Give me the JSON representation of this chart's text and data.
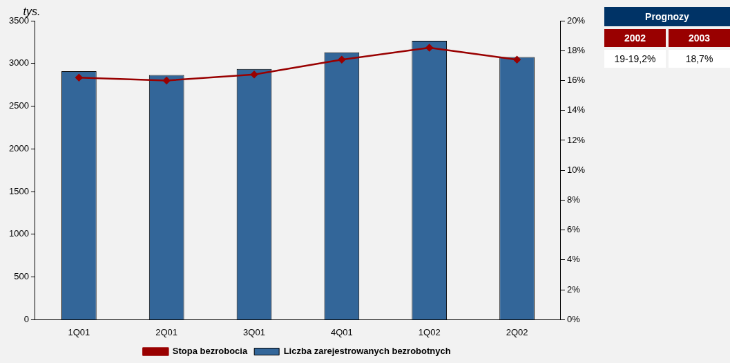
{
  "chart_data": {
    "type": "bar",
    "ylabel": "tys.",
    "categories": [
      "1Q01",
      "2Q01",
      "3Q01",
      "4Q01",
      "1Q02",
      "2Q02"
    ],
    "series": [
      {
        "name": "Liczba zarejestrowanych bezrobotnych",
        "color": "#336699",
        "values": [
          2910,
          2865,
          2935,
          3130,
          3265,
          3075
        ]
      },
      {
        "name": "Stopa bezrobocia",
        "type": "line",
        "axis": "y2",
        "color": "#990000",
        "values": [
          16.2,
          16.0,
          16.4,
          17.4,
          18.2,
          17.4
        ]
      }
    ],
    "ylim": [
      0,
      3500
    ],
    "yticks": [
      0,
      500,
      1000,
      1500,
      2000,
      2500,
      3000,
      3500
    ],
    "y2lim": [
      0,
      20
    ],
    "y2ticks": [
      {
        "value": 0,
        "label": "0%"
      },
      {
        "value": 2,
        "label": "2%"
      },
      {
        "value": 4,
        "label": "4%"
      },
      {
        "value": 6,
        "label": "6%"
      },
      {
        "value": 8,
        "label": "8%"
      },
      {
        "value": 10,
        "label": "10%"
      },
      {
        "value": 12,
        "label": "12%"
      },
      {
        "value": 14,
        "label": "14%"
      },
      {
        "value": 16,
        "label": "16%"
      },
      {
        "value": 18,
        "label": "18%"
      },
      {
        "value": 20,
        "label": "20%"
      }
    ],
    "grid": false,
    "legend": "bottom",
    "marker": "diamond",
    "line_style": "solid",
    "annotations": [
      "Prognozy",
      "2002",
      "2003",
      "19-19,2%",
      "18,7%"
    ]
  }
}
